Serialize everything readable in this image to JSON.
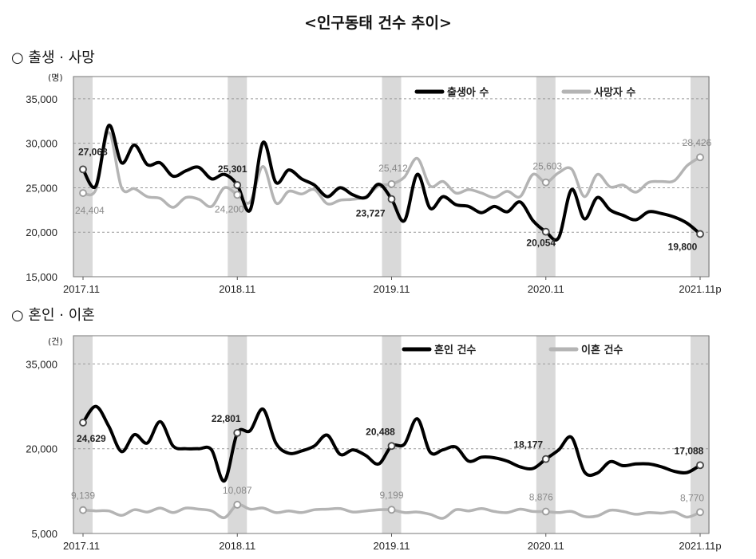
{
  "page_title": "<인구동태 건수 추이>",
  "chart_data": [
    {
      "type": "line",
      "section_label": "○ 출생 · 사망",
      "unit": "(명)",
      "ylim": [
        15000,
        37500
      ],
      "yticks": [
        "15,000",
        "20,000",
        "25,000",
        "30,000",
        "35,000"
      ],
      "ytick_values": [
        15000,
        20000,
        25000,
        30000,
        35000
      ],
      "xtick_labels": [
        "2017.11",
        "2018.11",
        "2019.11",
        "2020.11",
        "2021.11p"
      ],
      "xtick_index": [
        0,
        12,
        24,
        36,
        48
      ],
      "highlight_index": [
        0,
        12,
        24,
        36,
        48
      ],
      "grid": "horizontal-dashed",
      "legend_position": "top-right",
      "series": [
        {
          "name": "출생아 수",
          "color": "#000000",
          "values": [
            27068,
            25200,
            32000,
            27800,
            29800,
            27600,
            27800,
            26300,
            26900,
            27300,
            26000,
            26500,
            25301,
            22500,
            30100,
            25600,
            27000,
            26000,
            25300,
            24000,
            25000,
            24200,
            23900,
            25400,
            23727,
            21300,
            26500,
            22700,
            24000,
            23100,
            22900,
            22200,
            22900,
            22300,
            23400,
            21300,
            20054,
            19400,
            24800,
            21500,
            23900,
            22500,
            21900,
            21400,
            22300,
            22100,
            21700,
            21000,
            19800
          ],
          "labels": [
            {
              "index": 0,
              "text": "27,068"
            },
            {
              "index": 12,
              "text": "25,301"
            },
            {
              "index": 24,
              "text": "23,727"
            },
            {
              "index": 36,
              "text": "20,054"
            },
            {
              "index": 48,
              "text": "19,800"
            }
          ]
        },
        {
          "name": "사망자 수",
          "color": "#b4b4b4",
          "values": [
            24404,
            24800,
            31200,
            25000,
            24900,
            24000,
            23800,
            22800,
            23900,
            23700,
            22900,
            25000,
            24200,
            23400,
            27400,
            23300,
            24600,
            24300,
            24800,
            23200,
            23600,
            23700,
            24000,
            25200,
            25412,
            26200,
            28300,
            25200,
            25700,
            24400,
            24800,
            24400,
            23900,
            24600,
            24000,
            26500,
            25603,
            26700,
            27100,
            24000,
            26500,
            25100,
            25300,
            24500,
            25600,
            25700,
            25800,
            27500,
            28426
          ],
          "labels": [
            {
              "index": 0,
              "text": "24,404"
            },
            {
              "index": 12,
              "text": "24,200"
            },
            {
              "index": 24,
              "text": "25,412"
            },
            {
              "index": 36,
              "text": "25,603"
            },
            {
              "index": 48,
              "text": "28,426"
            }
          ]
        }
      ]
    },
    {
      "type": "line",
      "section_label": "○ 혼인 · 이혼",
      "unit": "(건)",
      "ylim": [
        5000,
        40000
      ],
      "yticks": [
        "5,000",
        "20,000",
        "35,000"
      ],
      "ytick_values": [
        5000,
        20000,
        35000
      ],
      "xtick_labels": [
        "2017.11",
        "2018.11",
        "2019.11",
        "2020.11",
        "2021.11p"
      ],
      "xtick_index": [
        0,
        12,
        24,
        36,
        48
      ],
      "highlight_index": [
        0,
        12,
        24,
        36,
        48
      ],
      "grid": "horizontal-dashed",
      "legend_position": "top-right",
      "series": [
        {
          "name": "혼인 건수",
          "color": "#000000",
          "values": [
            24629,
            27500,
            24000,
            19500,
            22500,
            21000,
            24800,
            20500,
            20000,
            20000,
            19800,
            14300,
            22801,
            23200,
            27000,
            21000,
            19200,
            19600,
            20500,
            22400,
            19000,
            19800,
            18800,
            17300,
            20488,
            20800,
            25300,
            19400,
            19800,
            20300,
            17800,
            18500,
            18400,
            17800,
            16800,
            16500,
            18177,
            19800,
            22000,
            15900,
            15700,
            17700,
            17000,
            17300,
            17300,
            16800,
            16000,
            15800,
            17088
          ],
          "labels": [
            {
              "index": 0,
              "text": "24,629"
            },
            {
              "index": 12,
              "text": "22,801"
            },
            {
              "index": 24,
              "text": "20,488"
            },
            {
              "index": 36,
              "text": "18,177"
            },
            {
              "index": 48,
              "text": "17,088"
            }
          ]
        },
        {
          "name": "이혼 건수",
          "color": "#b4b4b4",
          "values": [
            9139,
            9000,
            9000,
            8200,
            9200,
            8800,
            9500,
            8700,
            9500,
            9300,
            9000,
            7800,
            10087,
            9300,
            9500,
            8700,
            9000,
            8700,
            9200,
            9300,
            9400,
            8800,
            9000,
            9200,
            9199,
            8700,
            8800,
            8400,
            7700,
            9200,
            9000,
            9400,
            8900,
            8700,
            9300,
            8900,
            8876,
            8700,
            8900,
            8000,
            8100,
            9100,
            8900,
            8400,
            8700,
            8600,
            8800,
            7900,
            8770
          ],
          "labels": [
            {
              "index": 0,
              "text": "9,139"
            },
            {
              "index": 12,
              "text": "10,087"
            },
            {
              "index": 24,
              "text": "9,199"
            },
            {
              "index": 36,
              "text": "8,876"
            },
            {
              "index": 48,
              "text": "8,770"
            }
          ]
        }
      ]
    }
  ]
}
